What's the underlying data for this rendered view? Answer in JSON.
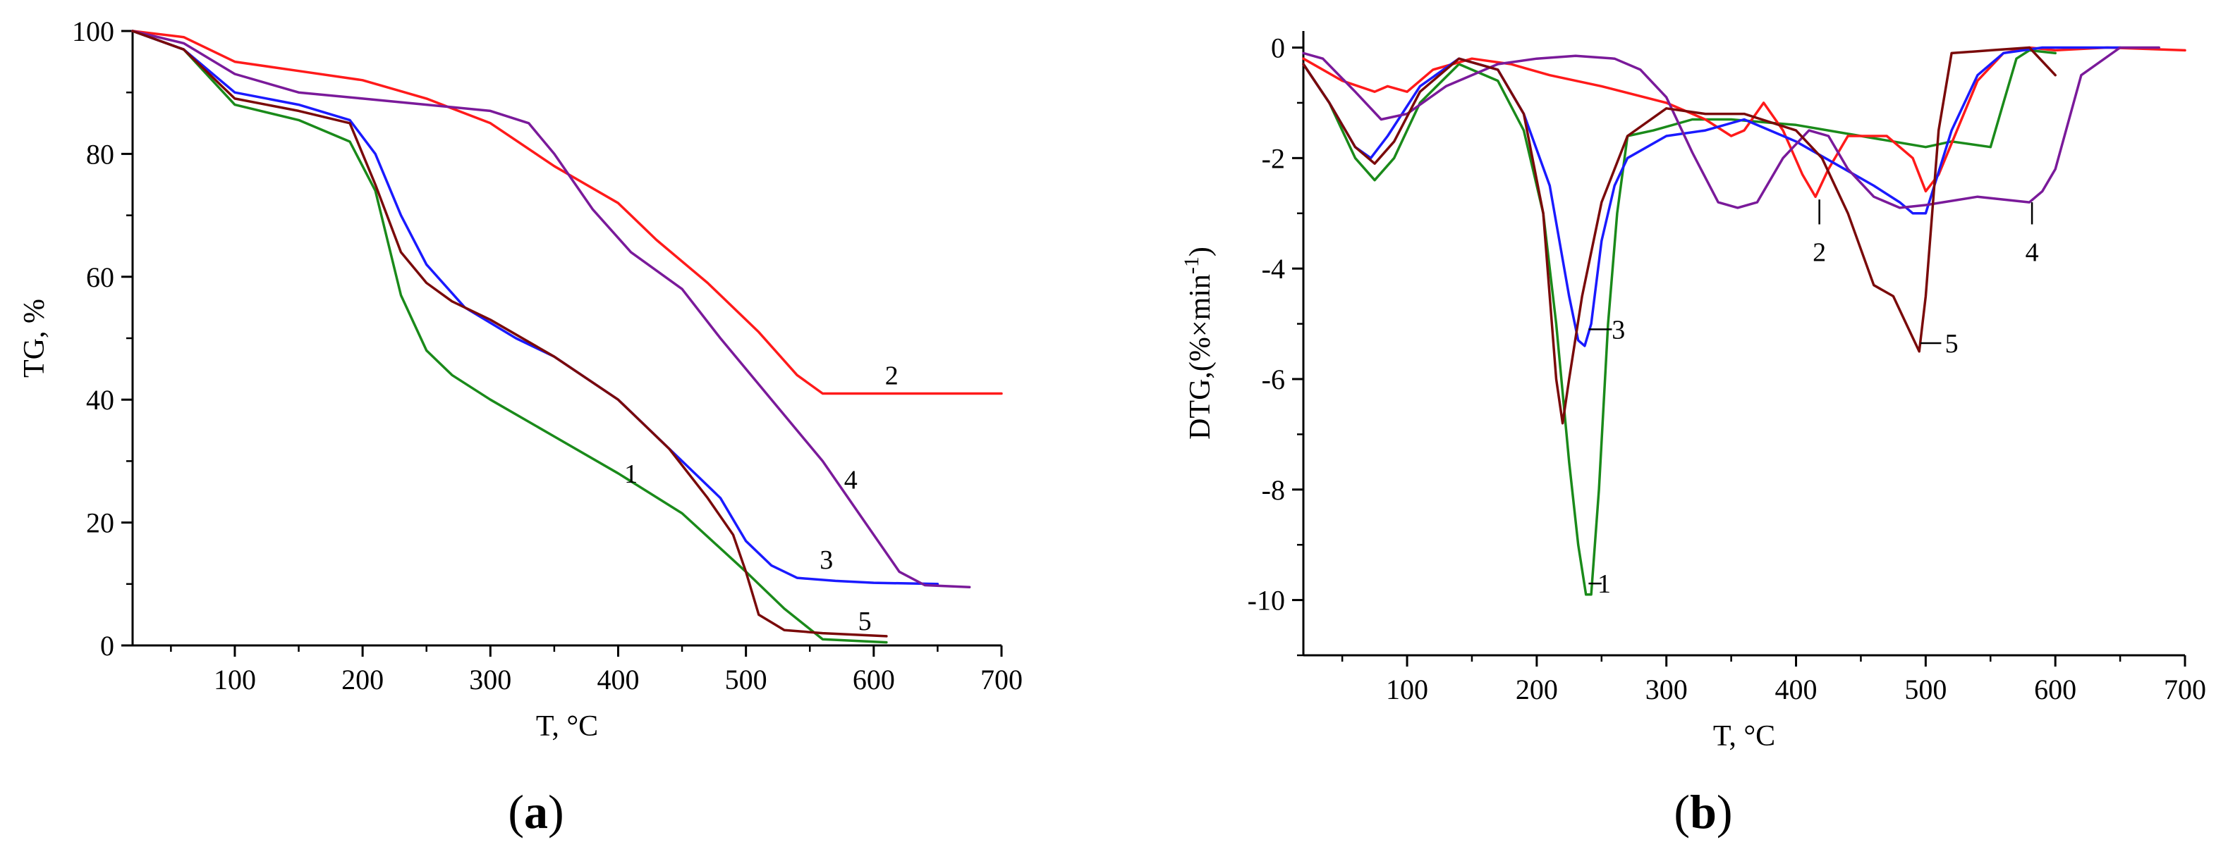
{
  "colors": {
    "1": "#1a8a1a",
    "2": "#ff1a1a",
    "3": "#1a1aff",
    "4": "#7a1a9a",
    "5": "#7a0a0a"
  },
  "chart_data": [
    {
      "type": "line",
      "panel": "a",
      "panel_label": "a",
      "xlabel": "T, °C",
      "ylabel": "TG, %",
      "xlim": [
        20,
        700
      ],
      "ylim": [
        0,
        100
      ],
      "xticks": [
        100,
        200,
        300,
        400,
        500,
        600,
        700
      ],
      "yticks": [
        0,
        20,
        40,
        60,
        80,
        100
      ],
      "curve_labels": [
        {
          "text": "1",
          "x": 410,
          "y": 28
        },
        {
          "text": "2",
          "x": 614,
          "y": 44
        },
        {
          "text": "3",
          "x": 563,
          "y": 14
        },
        {
          "text": "4",
          "x": 582,
          "y": 27
        },
        {
          "text": "5",
          "x": 593,
          "y": 4
        }
      ],
      "series": [
        {
          "key": "1",
          "x": [
            20,
            60,
            100,
            150,
            190,
            210,
            230,
            250,
            270,
            300,
            350,
            400,
            450,
            500,
            530,
            560,
            610
          ],
          "y": [
            100,
            97,
            88,
            85.5,
            82,
            74,
            57,
            48,
            44,
            40,
            34,
            28,
            21.5,
            12,
            6,
            1,
            0.5
          ]
        },
        {
          "key": "2",
          "x": [
            20,
            60,
            100,
            150,
            200,
            250,
            300,
            350,
            400,
            430,
            470,
            510,
            540,
            560,
            600,
            650,
            700
          ],
          "y": [
            100,
            99,
            95,
            93.5,
            92,
            89,
            85,
            78,
            72,
            66,
            59,
            51,
            44,
            41,
            41,
            41,
            41
          ]
        },
        {
          "key": "3",
          "x": [
            20,
            60,
            100,
            150,
            190,
            210,
            230,
            250,
            280,
            320,
            350,
            400,
            450,
            480,
            500,
            520,
            540,
            570,
            600,
            650
          ],
          "y": [
            100,
            97,
            90,
            88,
            85.5,
            80,
            70,
            62,
            55,
            50,
            47,
            40,
            30,
            24,
            17,
            13,
            11,
            10.5,
            10.2,
            10
          ]
        },
        {
          "key": "4",
          "x": [
            20,
            60,
            100,
            150,
            200,
            250,
            300,
            330,
            350,
            380,
            410,
            450,
            480,
            520,
            560,
            600,
            620,
            640,
            675
          ],
          "y": [
            100,
            98,
            93,
            90,
            89,
            88,
            87,
            85,
            80,
            71,
            64,
            58,
            50,
            40,
            30,
            18,
            12,
            9.8,
            9.5
          ]
        },
        {
          "key": "5",
          "x": [
            20,
            60,
            100,
            150,
            190,
            210,
            230,
            250,
            270,
            300,
            350,
            400,
            440,
            470,
            490,
            500,
            510,
            530,
            560,
            610
          ],
          "y": [
            100,
            97,
            89,
            87,
            85,
            75,
            64,
            59,
            56,
            53,
            47,
            40,
            32,
            24,
            18,
            12,
            5,
            2.5,
            2,
            1.5
          ]
        }
      ]
    },
    {
      "type": "line",
      "panel": "b",
      "panel_label": "b",
      "xlabel": "T, °C",
      "ylabel": "DTG,(%×min⁻¹)",
      "ylabel_main": "DTG,(%×min",
      "ylabel_sup": "-1",
      "ylabel_close": ")",
      "xlim": [
        20,
        700
      ],
      "ylim": [
        -11,
        0.3
      ],
      "xticks": [
        100,
        200,
        300,
        400,
        500,
        600,
        700
      ],
      "yticks": [
        0,
        -2,
        -4,
        -6,
        -8,
        -10
      ],
      "curve_labels": [
        {
          "text": "1",
          "x": 252,
          "y": -9.7,
          "lx0": 240,
          "ly0": -9.7,
          "lx1": 250,
          "ly1": -9.7
        },
        {
          "text": "2",
          "x": 418,
          "y": -3.7,
          "lx0": 418,
          "ly0": -2.75,
          "lx1": 418,
          "ly1": -3.2
        },
        {
          "text": "3",
          "x": 263,
          "y": -5.1,
          "lx0": 240,
          "ly0": -5.1,
          "lx1": 258,
          "ly1": -5.1
        },
        {
          "text": "4",
          "x": 582,
          "y": -3.7,
          "lx0": 582,
          "ly0": -2.8,
          "lx1": 582,
          "ly1": -3.2
        },
        {
          "text": "5",
          "x": 520,
          "y": -5.35,
          "lx0": 496,
          "ly0": -5.35,
          "lx1": 512,
          "ly1": -5.35
        }
      ],
      "series": [
        {
          "key": "1",
          "x": [
            20,
            40,
            60,
            75,
            90,
            110,
            140,
            170,
            190,
            205,
            215,
            225,
            232,
            238,
            242,
            248,
            255,
            262,
            270,
            290,
            320,
            350,
            400,
            450,
            500,
            520,
            550,
            560,
            570,
            580,
            600
          ],
          "y": [
            -0.3,
            -1,
            -2,
            -2.4,
            -2,
            -1,
            -0.3,
            -0.6,
            -1.5,
            -3,
            -5,
            -7.5,
            -9,
            -9.9,
            -9.9,
            -8,
            -5,
            -3,
            -1.6,
            -1.5,
            -1.3,
            -1.3,
            -1.4,
            -1.6,
            -1.8,
            -1.7,
            -1.8,
            -1,
            -0.2,
            -0.05,
            -0.1
          ]
        },
        {
          "key": "2",
          "x": [
            20,
            50,
            75,
            85,
            100,
            120,
            150,
            180,
            210,
            250,
            300,
            330,
            350,
            360,
            375,
            390,
            405,
            415,
            425,
            440,
            470,
            490,
            500,
            510,
            540,
            560,
            580,
            600,
            640,
            700
          ],
          "y": [
            -0.2,
            -0.6,
            -0.8,
            -0.7,
            -0.8,
            -0.4,
            -0.2,
            -0.3,
            -0.5,
            -0.7,
            -1,
            -1.3,
            -1.6,
            -1.5,
            -1,
            -1.5,
            -2.3,
            -2.7,
            -2.2,
            -1.6,
            -1.6,
            -2,
            -2.6,
            -2.3,
            -0.6,
            -0.1,
            0,
            -0.05,
            0,
            -0.05
          ]
        },
        {
          "key": "3",
          "x": [
            20,
            40,
            60,
            72,
            85,
            110,
            140,
            170,
            190,
            210,
            225,
            232,
            237,
            242,
            250,
            260,
            270,
            300,
            330,
            360,
            400,
            430,
            460,
            480,
            490,
            500,
            520,
            540,
            560,
            590,
            610,
            650
          ],
          "y": [
            -0.3,
            -1,
            -1.8,
            -2,
            -1.6,
            -0.7,
            -0.2,
            -0.4,
            -1.2,
            -2.5,
            -4.5,
            -5.3,
            -5.4,
            -5,
            -3.5,
            -2.5,
            -2,
            -1.6,
            -1.5,
            -1.3,
            -1.7,
            -2.1,
            -2.5,
            -2.8,
            -3,
            -3,
            -1.5,
            -0.5,
            -0.1,
            0,
            0,
            0
          ]
        },
        {
          "key": "4",
          "x": [
            20,
            35,
            60,
            80,
            100,
            130,
            170,
            200,
            230,
            260,
            280,
            300,
            320,
            340,
            355,
            370,
            390,
            410,
            425,
            440,
            460,
            480,
            500,
            540,
            580,
            590,
            600,
            620,
            650,
            680
          ],
          "y": [
            -0.1,
            -0.2,
            -0.8,
            -1.3,
            -1.2,
            -0.7,
            -0.3,
            -0.2,
            -0.15,
            -0.2,
            -0.4,
            -0.9,
            -1.9,
            -2.8,
            -2.9,
            -2.8,
            -2,
            -1.5,
            -1.6,
            -2.2,
            -2.7,
            -2.9,
            -2.85,
            -2.7,
            -2.8,
            -2.6,
            -2.2,
            -0.5,
            0,
            0
          ]
        },
        {
          "key": "5",
          "x": [
            20,
            40,
            60,
            75,
            90,
            110,
            140,
            170,
            190,
            205,
            215,
            220,
            225,
            235,
            250,
            270,
            300,
            330,
            360,
            400,
            420,
            440,
            460,
            475,
            485,
            495,
            500,
            510,
            520,
            550,
            580,
            600
          ],
          "y": [
            -0.3,
            -1,
            -1.8,
            -2.1,
            -1.7,
            -0.8,
            -0.2,
            -0.4,
            -1.2,
            -3,
            -6,
            -6.8,
            -6,
            -4.5,
            -2.8,
            -1.6,
            -1.1,
            -1.2,
            -1.2,
            -1.5,
            -2,
            -3,
            -4.3,
            -4.5,
            -5,
            -5.5,
            -4.5,
            -1.5,
            -0.1,
            -0.05,
            0,
            -0.5
          ]
        }
      ]
    }
  ]
}
